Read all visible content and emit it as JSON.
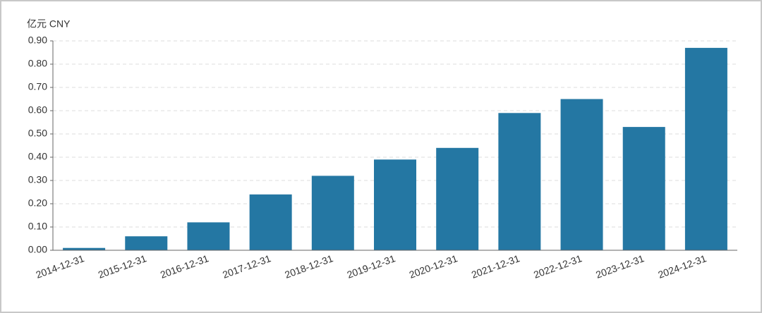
{
  "chart_data": {
    "type": "bar",
    "y_label": "亿元  CNY",
    "categories": [
      "2014-12-31",
      "2015-12-31",
      "2016-12-31",
      "2017-12-31",
      "2018-12-31",
      "2019-12-31",
      "2020-12-31",
      "2021-12-31",
      "2022-12-31",
      "2023-12-31",
      "2024-12-31"
    ],
    "values": [
      0.01,
      0.06,
      0.12,
      0.24,
      0.32,
      0.39,
      0.44,
      0.59,
      0.65,
      0.53,
      0.87
    ],
    "color": "#2477a3",
    "ylim": [
      0,
      0.9
    ],
    "yticks": [
      {
        "value": 0,
        "label": "0.00"
      },
      {
        "value": 0.1,
        "label": "0.10"
      },
      {
        "value": 0.2,
        "label": "0.20"
      },
      {
        "value": 0.3,
        "label": "0.30"
      },
      {
        "value": 0.4,
        "label": "0.40"
      },
      {
        "value": 0.5,
        "label": "0.50"
      },
      {
        "value": 0.6,
        "label": "0.60"
      },
      {
        "value": 0.7,
        "label": "0.70"
      },
      {
        "value": 0.8,
        "label": "0.80"
      },
      {
        "value": 0.9,
        "label": "0.90"
      }
    ],
    "grid": true
  }
}
